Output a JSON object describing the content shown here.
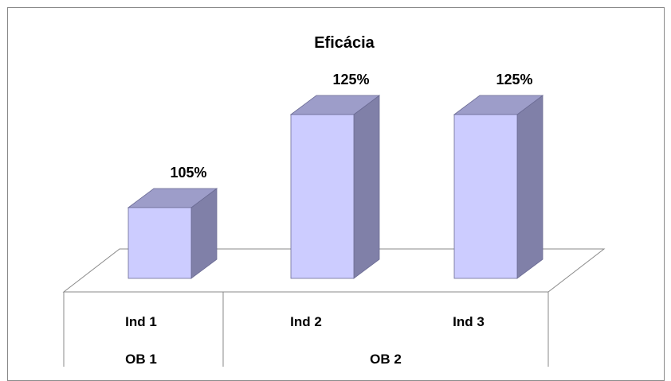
{
  "chart_data": {
    "type": "bar",
    "title": "Eficácia",
    "categories": [
      "Ind  1",
      "Ind  2",
      "Ind  3"
    ],
    "groups": [
      {
        "label": "OB 1",
        "categories": [
          "Ind  1"
        ]
      },
      {
        "label": "OB 2",
        "categories": [
          "Ind  2",
          "Ind  3"
        ]
      }
    ],
    "values": [
      105,
      125,
      125
    ],
    "data_labels": [
      "105%",
      "125%",
      "125%"
    ],
    "ylim": [
      100,
      130
    ],
    "grid": false,
    "legend": "none",
    "style": "3d-column"
  },
  "colors": {
    "bar_front": "#ccccff",
    "bar_top": "#9d9dc9",
    "bar_side": "#8080a8",
    "bar_edge": "#6b6b94",
    "floor_line": "#8a8a8a"
  }
}
